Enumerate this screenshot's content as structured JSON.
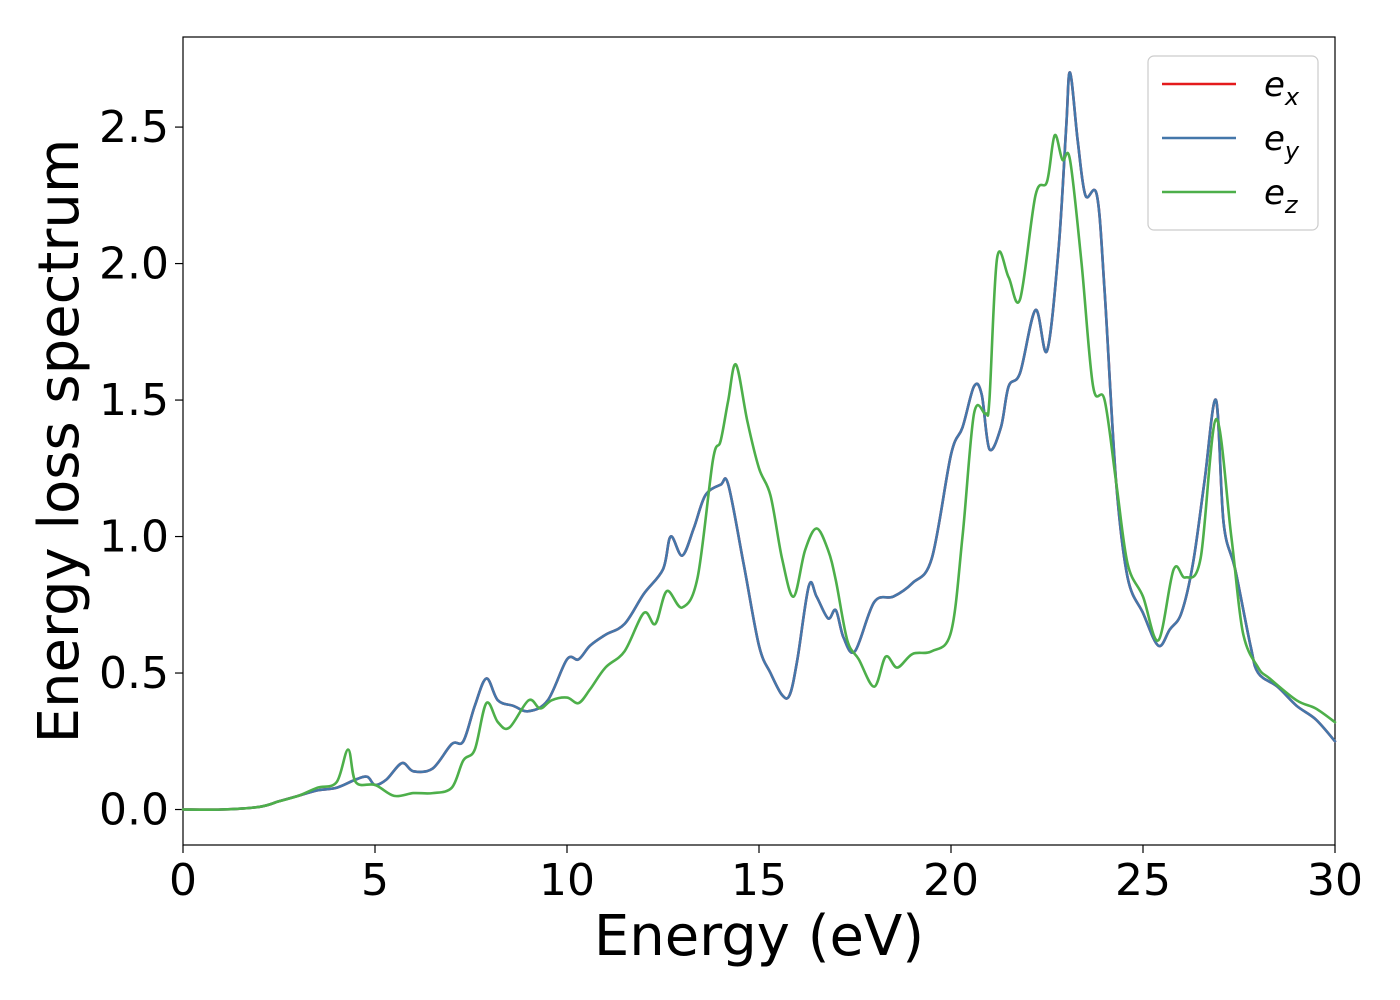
{
  "chart_data": {
    "type": "line",
    "xlabel": "Energy (eV)",
    "ylabel": "Energy loss spectrum",
    "xlim": [
      0,
      30
    ],
    "ylim": [
      -0.13,
      2.83
    ],
    "xticks": [
      0,
      5,
      10,
      15,
      20,
      25,
      30
    ],
    "xtick_labels": [
      "0",
      "5",
      "10",
      "15",
      "20",
      "25",
      "30"
    ],
    "yticks": [
      0.0,
      0.5,
      1.0,
      1.5,
      2.0,
      2.5
    ],
    "ytick_labels": [
      "0.0",
      "0.5",
      "1.0",
      "1.5",
      "2.0",
      "2.5"
    ],
    "grid": false,
    "legend_position": "top-right",
    "series": [
      {
        "name": "e",
        "subscript": "x",
        "color": "#e41a1c",
        "x": [
          0,
          1,
          2,
          2.5,
          3,
          3.5,
          4,
          4.5,
          4.8,
          5,
          5.3,
          5.7,
          6,
          6.5,
          7,
          7.3,
          7.6,
          7.9,
          8.2,
          8.6,
          9,
          9.5,
          10,
          10.3,
          10.6,
          11,
          11.5,
          12,
          12.5,
          12.7,
          13,
          13.3,
          13.6,
          14,
          14.2,
          14.6,
          15,
          15.3,
          15.6,
          15.8,
          16,
          16.3,
          16.5,
          16.8,
          17,
          17.2,
          17.5,
          18,
          18.5,
          19,
          19.5,
          20,
          20.3,
          20.6,
          20.8,
          21,
          21.3,
          21.5,
          21.8,
          22.2,
          22.5,
          22.8,
          23,
          23.1,
          23.3,
          23.5,
          23.8,
          24,
          24.3,
          24.6,
          25,
          25.4,
          25.7,
          26,
          26.3,
          26.6,
          26.9,
          27.1,
          27.4,
          27.8,
          28,
          28.5,
          29,
          29.5,
          30
        ],
        "values": [
          0,
          0,
          0.01,
          0.03,
          0.05,
          0.07,
          0.08,
          0.11,
          0.12,
          0.09,
          0.11,
          0.17,
          0.14,
          0.15,
          0.24,
          0.25,
          0.38,
          0.48,
          0.4,
          0.38,
          0.36,
          0.4,
          0.55,
          0.55,
          0.6,
          0.64,
          0.68,
          0.79,
          0.88,
          1.0,
          0.93,
          1.03,
          1.15,
          1.19,
          1.19,
          0.9,
          0.6,
          0.5,
          0.42,
          0.42,
          0.55,
          0.82,
          0.78,
          0.7,
          0.73,
          0.63,
          0.58,
          0.76,
          0.78,
          0.83,
          0.92,
          1.3,
          1.4,
          1.55,
          1.52,
          1.32,
          1.4,
          1.55,
          1.6,
          1.83,
          1.68,
          2.05,
          2.5,
          2.7,
          2.45,
          2.25,
          2.25,
          1.9,
          1.2,
          0.85,
          0.72,
          0.6,
          0.66,
          0.72,
          0.9,
          1.2,
          1.5,
          1.05,
          0.88,
          0.6,
          0.5,
          0.45,
          0.38,
          0.33,
          0.25
        ]
      },
      {
        "name": "e",
        "subscript": "y",
        "color": "#4477aa",
        "x": [
          0,
          1,
          2,
          2.5,
          3,
          3.5,
          4,
          4.5,
          4.8,
          5,
          5.3,
          5.7,
          6,
          6.5,
          7,
          7.3,
          7.6,
          7.9,
          8.2,
          8.6,
          9,
          9.5,
          10,
          10.3,
          10.6,
          11,
          11.5,
          12,
          12.5,
          12.7,
          13,
          13.3,
          13.6,
          14,
          14.2,
          14.6,
          15,
          15.3,
          15.6,
          15.8,
          16,
          16.3,
          16.5,
          16.8,
          17,
          17.2,
          17.5,
          18,
          18.5,
          19,
          19.5,
          20,
          20.3,
          20.6,
          20.8,
          21,
          21.3,
          21.5,
          21.8,
          22.2,
          22.5,
          22.8,
          23,
          23.1,
          23.3,
          23.5,
          23.8,
          24,
          24.3,
          24.6,
          25,
          25.4,
          25.7,
          26,
          26.3,
          26.6,
          26.9,
          27.1,
          27.4,
          27.8,
          28,
          28.5,
          29,
          29.5,
          30
        ],
        "values": [
          0,
          0,
          0.01,
          0.03,
          0.05,
          0.07,
          0.08,
          0.11,
          0.12,
          0.09,
          0.11,
          0.17,
          0.14,
          0.15,
          0.24,
          0.25,
          0.38,
          0.48,
          0.4,
          0.38,
          0.36,
          0.4,
          0.55,
          0.55,
          0.6,
          0.64,
          0.68,
          0.79,
          0.88,
          1.0,
          0.93,
          1.03,
          1.15,
          1.19,
          1.19,
          0.9,
          0.6,
          0.5,
          0.42,
          0.42,
          0.55,
          0.82,
          0.78,
          0.7,
          0.73,
          0.63,
          0.58,
          0.76,
          0.78,
          0.83,
          0.92,
          1.3,
          1.4,
          1.55,
          1.52,
          1.32,
          1.4,
          1.55,
          1.6,
          1.83,
          1.68,
          2.05,
          2.5,
          2.7,
          2.45,
          2.25,
          2.25,
          1.9,
          1.2,
          0.85,
          0.72,
          0.6,
          0.66,
          0.72,
          0.9,
          1.2,
          1.5,
          1.05,
          0.88,
          0.6,
          0.5,
          0.45,
          0.38,
          0.33,
          0.25
        ]
      },
      {
        "name": "e",
        "subscript": "z",
        "color": "#4daf4a",
        "x": [
          0,
          1,
          2,
          2.5,
          3,
          3.5,
          4,
          4.3,
          4.5,
          5,
          5.5,
          6,
          6.5,
          7,
          7.3,
          7.6,
          7.9,
          8.2,
          8.5,
          9,
          9.3,
          9.6,
          10,
          10.3,
          10.6,
          11,
          11.5,
          12,
          12.3,
          12.6,
          13,
          13.4,
          13.8,
          14,
          14.2,
          14.4,
          14.7,
          15,
          15.3,
          15.6,
          15.9,
          16.2,
          16.5,
          16.8,
          17,
          17.3,
          17.6,
          18,
          18.3,
          18.6,
          19,
          19.5,
          20,
          20.3,
          20.6,
          20.9,
          21,
          21.2,
          21.5,
          21.8,
          22.2,
          22.5,
          22.7,
          22.9,
          23.1,
          23.4,
          23.7,
          24,
          24.3,
          24.6,
          25,
          25.4,
          25.8,
          26.1,
          26.5,
          26.9,
          27.3,
          27.6,
          28,
          28.3,
          29,
          29.5,
          30
        ],
        "values": [
          0,
          0,
          0.01,
          0.03,
          0.05,
          0.08,
          0.1,
          0.22,
          0.1,
          0.09,
          0.05,
          0.06,
          0.06,
          0.08,
          0.18,
          0.22,
          0.39,
          0.32,
          0.3,
          0.4,
          0.37,
          0.4,
          0.41,
          0.39,
          0.44,
          0.52,
          0.58,
          0.72,
          0.68,
          0.8,
          0.74,
          0.85,
          1.28,
          1.35,
          1.5,
          1.63,
          1.42,
          1.25,
          1.15,
          0.92,
          0.78,
          0.95,
          1.03,
          0.95,
          0.84,
          0.62,
          0.55,
          0.45,
          0.56,
          0.52,
          0.57,
          0.58,
          0.65,
          1.0,
          1.45,
          1.45,
          1.5,
          2.02,
          1.95,
          1.87,
          2.25,
          2.3,
          2.47,
          2.38,
          2.38,
          2.0,
          1.55,
          1.5,
          1.2,
          0.9,
          0.78,
          0.62,
          0.88,
          0.85,
          0.92,
          1.43,
          1.0,
          0.65,
          0.52,
          0.48,
          0.4,
          0.37,
          0.32
        ]
      }
    ]
  }
}
